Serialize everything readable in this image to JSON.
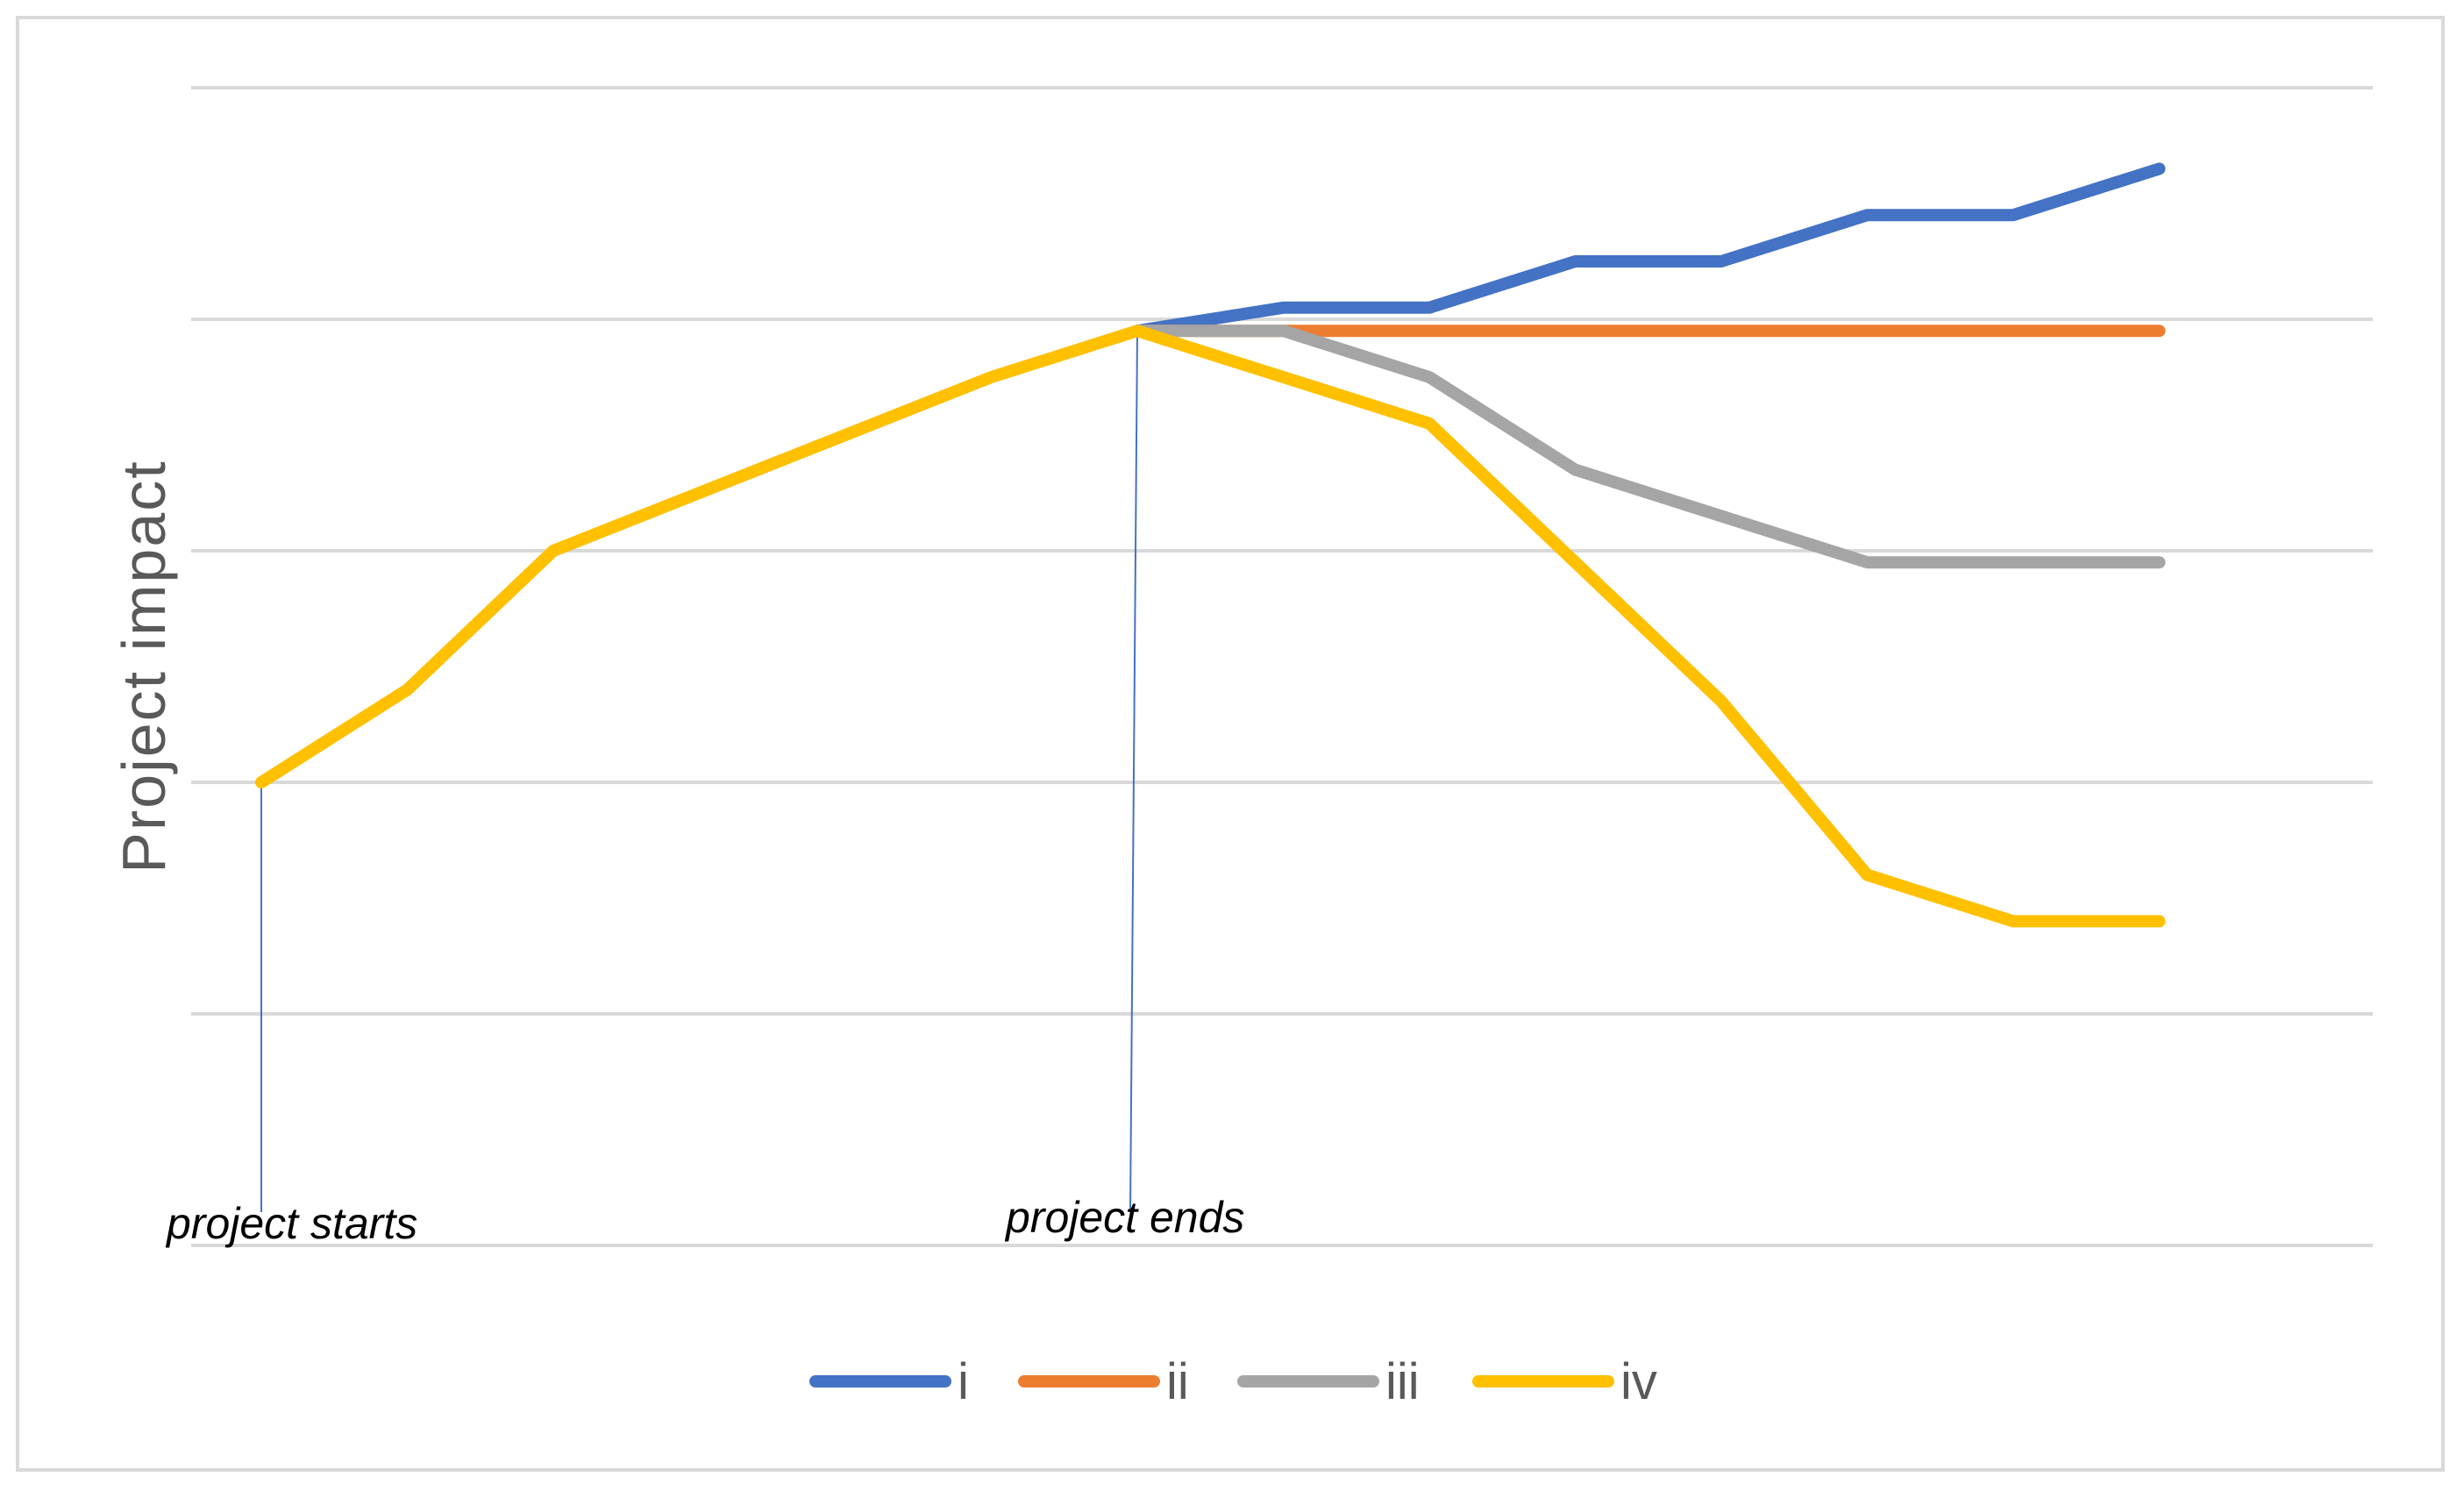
{
  "chart_data": {
    "type": "line",
    "title": "",
    "xlabel": "",
    "ylabel": "Project impact",
    "x": [
      1,
      2,
      3,
      4,
      5,
      6,
      7,
      8,
      9,
      10,
      11,
      12,
      13,
      14
    ],
    "ylim": [
      0,
      5
    ],
    "grid": true,
    "legend_position": "bottom",
    "series": [
      {
        "name": "i",
        "color": "#4472C4",
        "values": [
          null,
          null,
          null,
          null,
          null,
          null,
          3.95,
          4.05,
          4.05,
          4.25,
          4.25,
          4.45,
          4.45,
          4.65
        ]
      },
      {
        "name": "ii",
        "color": "#ED7D31",
        "values": [
          null,
          null,
          null,
          null,
          null,
          null,
          3.95,
          3.95,
          3.95,
          3.95,
          3.95,
          3.95,
          3.95,
          3.95
        ]
      },
      {
        "name": "iii",
        "color": "#A5A5A5",
        "values": [
          null,
          null,
          null,
          null,
          null,
          null,
          3.95,
          3.95,
          3.75,
          3.35,
          3.15,
          2.95,
          2.95,
          2.95
        ]
      },
      {
        "name": "iv",
        "color": "#FFC000",
        "values": [
          2.0,
          2.4,
          3.0,
          3.25,
          3.5,
          3.75,
          3.95,
          3.75,
          3.55,
          2.95,
          2.35,
          1.6,
          1.4,
          1.4
        ]
      }
    ],
    "annotations": [
      {
        "text": "project starts",
        "x": 1
      },
      {
        "text": "project ends",
        "x": 7
      }
    ]
  }
}
